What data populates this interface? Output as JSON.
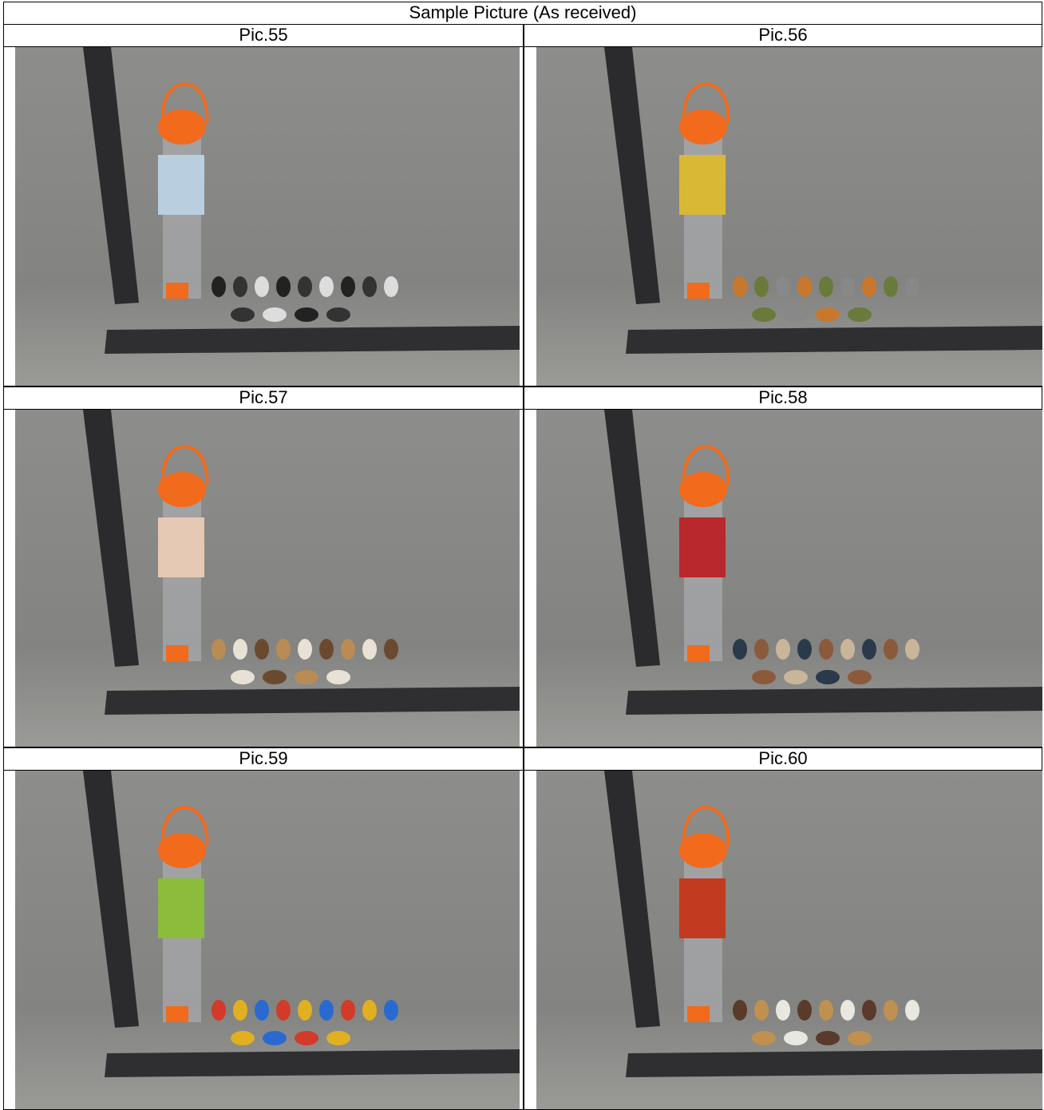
{
  "header": {
    "title": "Sample Picture (As received)"
  },
  "table": {
    "rows": [
      [
        "Pic.55",
        "Pic.56"
      ],
      [
        "Pic.57",
        "Pic.58"
      ],
      [
        "Pic.59",
        "Pic.60"
      ]
    ]
  }
}
